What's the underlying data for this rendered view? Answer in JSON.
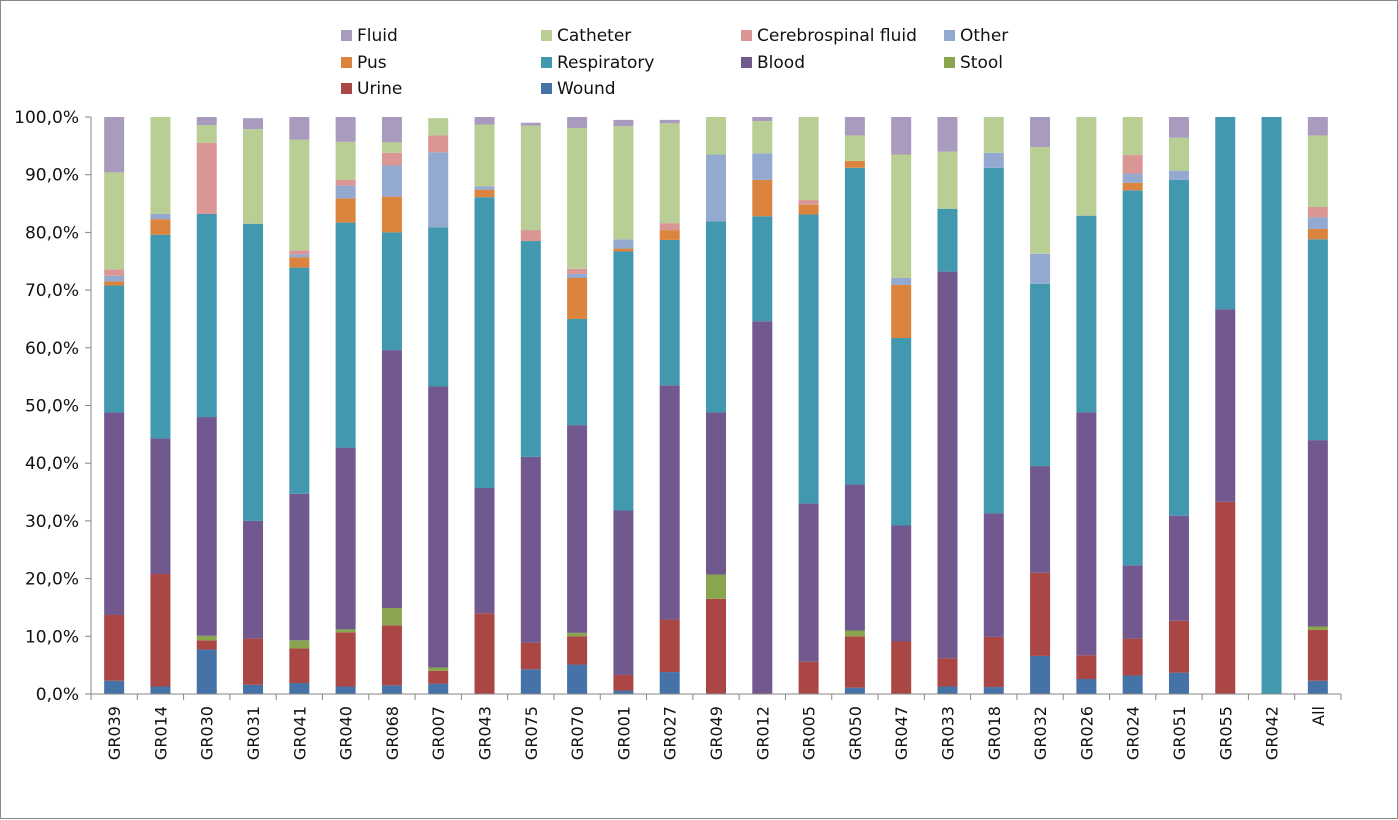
{
  "chart_data": {
    "type": "bar",
    "stacked": true,
    "percent_stacked": true,
    "title": "",
    "xlabel": "",
    "ylabel": "",
    "ylim": [
      0,
      100
    ],
    "y_ticks": [
      "0,0%",
      "10,0%",
      "20,0%",
      "30,0%",
      "40,0%",
      "50,0%",
      "60,0%",
      "70,0%",
      "80,0%",
      "90,0%",
      "100,0%"
    ],
    "grid": false,
    "legend_position": "top",
    "categories": [
      "GR039",
      "GR014",
      "GR030",
      "GR031",
      "GR041",
      "GR040",
      "GR068",
      "GR007",
      "GR043",
      "GR075",
      "GR070",
      "GR001",
      "GR027",
      "GR049",
      "GR012",
      "GR005",
      "GR050",
      "GR047",
      "GR033",
      "GR018",
      "GR032",
      "GR026",
      "GR024",
      "GR051",
      "GR055",
      "GR042",
      "All"
    ],
    "legend_order": [
      "Fluid",
      "Catheter",
      "Cerebrospinal fluid",
      "Other",
      "Pus",
      "Respiratory",
      "Blood",
      "Stool",
      "Urine",
      "Wound"
    ],
    "series": [
      {
        "name": "Wound",
        "color": "#4572A7",
        "values": [
          2.3,
          1.3,
          7.7,
          1.6,
          1.9,
          1.3,
          1.5,
          1.8,
          0,
          4.3,
          5.1,
          0.6,
          3.8,
          0,
          0,
          0,
          1.1,
          0,
          1.3,
          1.2,
          6.6,
          2.6,
          3.2,
          3.7,
          0,
          0,
          2.3
        ]
      },
      {
        "name": "Urine",
        "color": "#AA4643",
        "values": [
          11.4,
          19.5,
          1.6,
          8.0,
          6.0,
          9.4,
          10.4,
          2.2,
          14.0,
          4.6,
          4.9,
          2.7,
          9.1,
          16.5,
          0,
          5.6,
          8.9,
          9.1,
          4.9,
          8.7,
          14.4,
          4.1,
          6.4,
          9.0,
          33.3,
          0,
          8.8
        ]
      },
      {
        "name": "Stool",
        "color": "#89A54E",
        "values": [
          0,
          0,
          0.8,
          0,
          1.4,
          0.5,
          3.0,
          0.6,
          0,
          0,
          0.6,
          0,
          0,
          4.2,
          0,
          0,
          1.0,
          0,
          0,
          0,
          0,
          0,
          0,
          0,
          0,
          0,
          0.6
        ]
      },
      {
        "name": "Blood",
        "color": "#71588F",
        "values": [
          35.1,
          23.5,
          37.9,
          20.4,
          25.4,
          31.5,
          44.7,
          48.7,
          21.7,
          32.2,
          36.0,
          28.5,
          40.6,
          28.1,
          64.6,
          27.4,
          25.3,
          20.1,
          67.0,
          21.4,
          18.5,
          42.1,
          12.7,
          18.2,
          33.4,
          0,
          32.3
        ]
      },
      {
        "name": "Respiratory",
        "color": "#4198AF",
        "values": [
          22.0,
          35.3,
          35.2,
          51.5,
          39.2,
          39.0,
          20.4,
          27.6,
          50.4,
          37.4,
          18.4,
          44.9,
          25.2,
          33.1,
          18.2,
          50.1,
          54.9,
          32.5,
          10.9,
          59.9,
          31.6,
          34.1,
          65.0,
          58.2,
          33.3,
          100,
          34.8
        ]
      },
      {
        "name": "Pus",
        "color": "#DB843D",
        "values": [
          0.7,
          2.7,
          0,
          0,
          1.8,
          4.2,
          6.2,
          0,
          1.3,
          0,
          7.1,
          0.5,
          1.7,
          0,
          6.3,
          1.7,
          1.2,
          9.2,
          0,
          0,
          0,
          0,
          1.3,
          0,
          0,
          0,
          1.8
        ]
      },
      {
        "name": "Other",
        "color": "#93A9CF",
        "values": [
          1.0,
          0.9,
          0,
          0,
          0.5,
          2.2,
          5.4,
          13.0,
          0.6,
          0,
          0.7,
          1.6,
          0,
          11.6,
          4.6,
          0,
          0,
          1.2,
          0,
          2.6,
          5.2,
          0,
          1.6,
          1.6,
          0,
          0,
          2.0
        ]
      },
      {
        "name": "Cerebrospinal fluid",
        "color": "#D99694",
        "values": [
          1.1,
          0,
          12.3,
          0,
          0.7,
          1.0,
          2.2,
          2.9,
          0,
          1.9,
          0.9,
          0,
          1.2,
          0,
          0,
          0.8,
          0,
          0,
          0,
          0,
          0,
          0,
          3.2,
          0,
          0,
          0,
          1.8
        ]
      },
      {
        "name": "Catheter",
        "color": "#B9CE95",
        "values": [
          16.8,
          16.8,
          3.1,
          16.4,
          19.2,
          6.6,
          1.8,
          3.0,
          10.7,
          18.1,
          24.4,
          19.6,
          17.3,
          6.5,
          5.6,
          14.4,
          4.4,
          21.4,
          9.9,
          6.2,
          18.5,
          17.1,
          6.6,
          5.7,
          0,
          0,
          12.4
        ]
      },
      {
        "name": "Fluid",
        "color": "#A99BBD",
        "values": [
          9.6,
          0,
          1.4,
          1.9,
          3.9,
          4.3,
          4.4,
          0,
          1.3,
          0.5,
          1.9,
          1.1,
          0.6,
          0,
          0.7,
          0,
          3.2,
          6.5,
          6.0,
          0,
          5.2,
          0,
          0,
          3.6,
          0,
          0,
          3.2
        ]
      }
    ]
  }
}
